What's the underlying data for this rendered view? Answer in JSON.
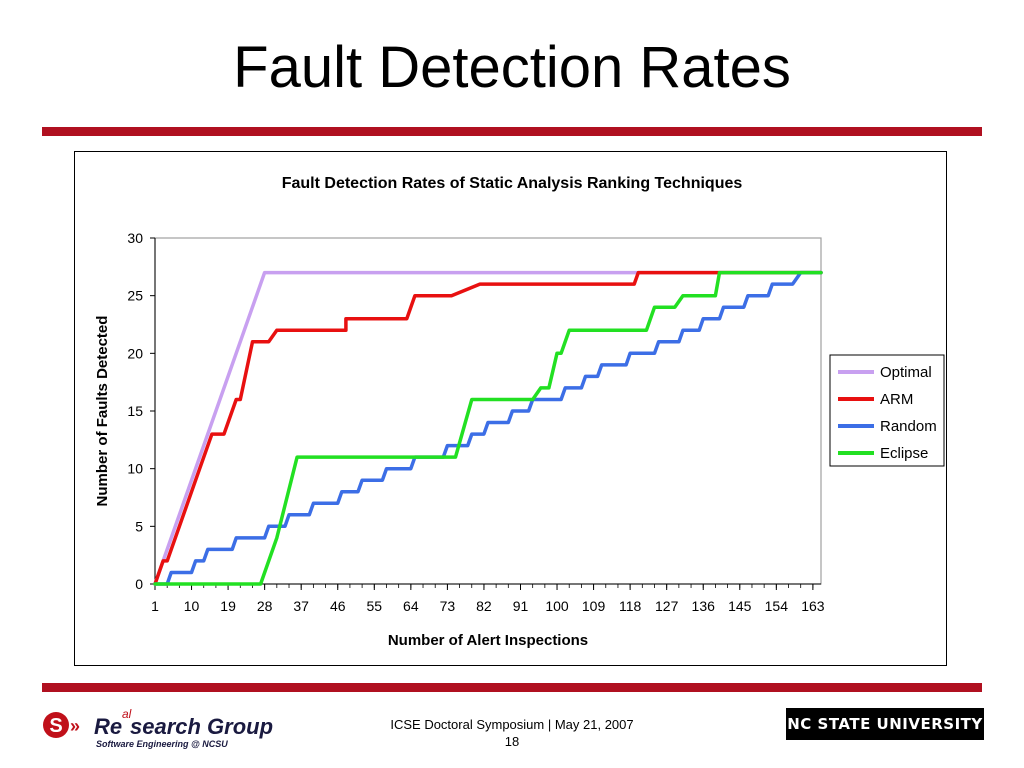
{
  "slide": {
    "title": "Fault Detection Rates",
    "footer_line1": "ICSE Doctoral Symposium | May 21, 2007",
    "page_number": "18",
    "logo_left_text1": "Re",
    "logo_left_text2": "search Group",
    "logo_left_superscript": "al",
    "logo_left_subtitle": "Software Engineering @ NCSU",
    "logo_right_text": "NC STATE UNIVERSITY"
  },
  "colors": {
    "rule": "#b01020",
    "logo_red": "#c0101a"
  },
  "chart_data": {
    "type": "line",
    "title": "Fault Detection Rates of Static Analysis Ranking Techniques",
    "xlabel": "Number of Alert Inspections",
    "ylabel": "Number of Faults Detected",
    "xlim": [
      1,
      165
    ],
    "ylim": [
      0,
      30
    ],
    "x_ticks": [
      1,
      10,
      19,
      28,
      37,
      46,
      55,
      64,
      73,
      82,
      91,
      100,
      109,
      118,
      127,
      136,
      145,
      154,
      163
    ],
    "y_ticks": [
      0,
      5,
      10,
      15,
      20,
      25,
      30
    ],
    "grid": false,
    "legend_position": "right",
    "series": [
      {
        "name": "Optimal",
        "color": "#c8a0f0",
        "points": [
          [
            1,
            0
          ],
          [
            28,
            27
          ],
          [
            165,
            27
          ]
        ]
      },
      {
        "name": "ARM",
        "color": "#e81010",
        "points": [
          [
            1,
            0
          ],
          [
            3,
            2
          ],
          [
            4,
            2
          ],
          [
            7,
            5
          ],
          [
            11,
            9
          ],
          [
            15,
            13
          ],
          [
            18,
            13
          ],
          [
            21,
            16
          ],
          [
            22,
            16
          ],
          [
            25,
            21
          ],
          [
            29,
            21
          ],
          [
            31,
            22
          ],
          [
            48,
            22
          ],
          [
            48,
            23
          ],
          [
            63,
            23
          ],
          [
            65,
            25
          ],
          [
            74,
            25
          ],
          [
            81,
            26
          ],
          [
            119,
            26
          ],
          [
            120,
            27
          ],
          [
            165,
            27
          ]
        ]
      },
      {
        "name": "Random",
        "color": "#3c6ee6",
        "points": [
          [
            1,
            0
          ],
          [
            4,
            0
          ],
          [
            5,
            1
          ],
          [
            10,
            1
          ],
          [
            11,
            2
          ],
          [
            13,
            2
          ],
          [
            14,
            3
          ],
          [
            20,
            3
          ],
          [
            21,
            4
          ],
          [
            28,
            4
          ],
          [
            29,
            5
          ],
          [
            33,
            5
          ],
          [
            34,
            6
          ],
          [
            39,
            6
          ],
          [
            40,
            7
          ],
          [
            46,
            7
          ],
          [
            47,
            8
          ],
          [
            51,
            8
          ],
          [
            52,
            9
          ],
          [
            57,
            9
          ],
          [
            58,
            10
          ],
          [
            64,
            10
          ],
          [
            65,
            11
          ],
          [
            72,
            11
          ],
          [
            73,
            12
          ],
          [
            78,
            12
          ],
          [
            79,
            13
          ],
          [
            82,
            13
          ],
          [
            83,
            14
          ],
          [
            88,
            14
          ],
          [
            89,
            15
          ],
          [
            93,
            15
          ],
          [
            94,
            16
          ],
          [
            101,
            16
          ],
          [
            102,
            17
          ],
          [
            106,
            17
          ],
          [
            107,
            18
          ],
          [
            110,
            18
          ],
          [
            111,
            19
          ],
          [
            117,
            19
          ],
          [
            118,
            20
          ],
          [
            124,
            20
          ],
          [
            125,
            21
          ],
          [
            130,
            21
          ],
          [
            131,
            22
          ],
          [
            135,
            22
          ],
          [
            136,
            23
          ],
          [
            140,
            23
          ],
          [
            141,
            24
          ],
          [
            146,
            24
          ],
          [
            147,
            25
          ],
          [
            152,
            25
          ],
          [
            153,
            26
          ],
          [
            158,
            26
          ],
          [
            160,
            27
          ],
          [
            165,
            27
          ]
        ]
      },
      {
        "name": "Eclipse",
        "color": "#22e022",
        "points": [
          [
            1,
            0
          ],
          [
            27,
            0
          ],
          [
            31,
            4
          ],
          [
            36,
            11
          ],
          [
            75,
            11
          ],
          [
            79,
            16
          ],
          [
            94,
            16
          ],
          [
            96,
            17
          ],
          [
            98,
            17
          ],
          [
            100,
            20
          ],
          [
            101,
            20
          ],
          [
            103,
            22
          ],
          [
            122,
            22
          ],
          [
            124,
            24
          ],
          [
            129,
            24
          ],
          [
            131,
            25
          ],
          [
            139,
            25
          ],
          [
            140,
            27
          ],
          [
            165,
            27
          ]
        ]
      }
    ]
  }
}
